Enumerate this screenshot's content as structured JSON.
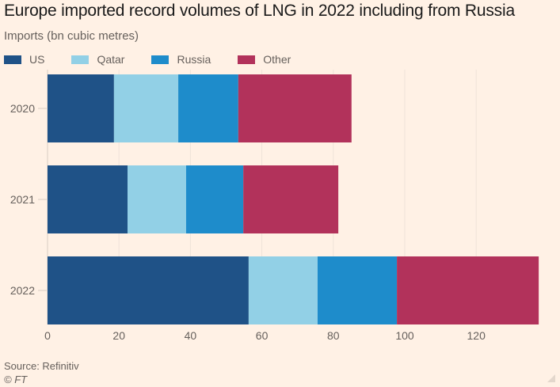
{
  "chart_data": {
    "type": "bar",
    "orientation": "horizontal",
    "stacked": true,
    "title": "Europe imported record volumes of LNG in 2022 including from Russia",
    "subtitle": "Imports (bn cubic metres)",
    "xlabel": "",
    "ylabel": "",
    "categories": [
      "2020",
      "2021",
      "2022"
    ],
    "series": [
      {
        "name": "US",
        "color": "#1f5287",
        "values": [
          18.6,
          22.4,
          56.3
        ]
      },
      {
        "name": "Qatar",
        "color": "#92d0e6",
        "values": [
          18.0,
          16.4,
          19.3
        ]
      },
      {
        "name": "Russia",
        "color": "#1e8ccb",
        "values": [
          16.8,
          16.0,
          22.2
        ]
      },
      {
        "name": "Other",
        "color": "#b2325b",
        "values": [
          31.7,
          26.6,
          39.7
        ]
      }
    ],
    "xlim": [
      0,
      140
    ],
    "xticks": [
      0,
      20,
      40,
      60,
      80,
      100,
      120
    ],
    "grid": true,
    "legend_position": "top-left",
    "source": "Source: Refinitiv",
    "copyright": "© FT"
  }
}
